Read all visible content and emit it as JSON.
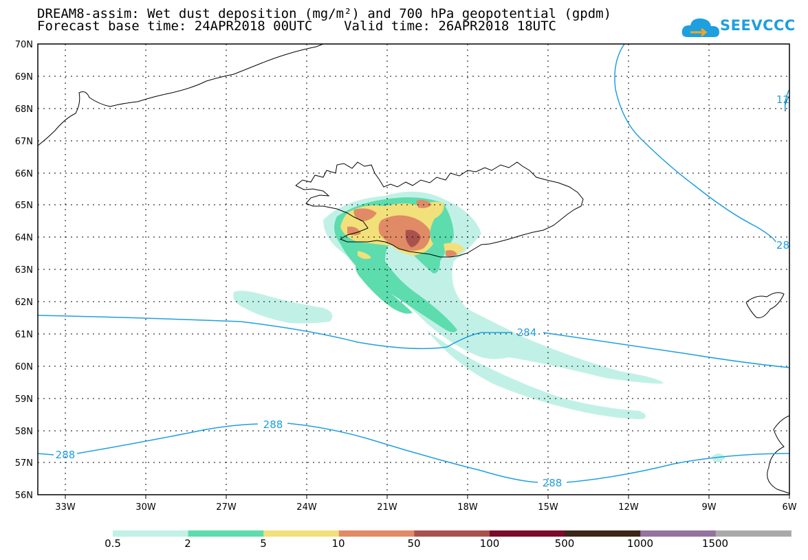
{
  "title_line1": "DREAM8-assim: Wet dust deposition (mg/m²) and 700 hPa geopotential (gpdm)",
  "title_line2": "Forecast base time: 24APR2018 00UTC    Valid time: 26APR2018 18UTC",
  "logo_text": "SEEVCCC",
  "lat_labels": [
    "70N",
    "69N",
    "68N",
    "67N",
    "66N",
    "65N",
    "64N",
    "63N",
    "62N",
    "61N",
    "60N",
    "59N",
    "58N",
    "57N",
    "56N"
  ],
  "lon_labels": [
    "33W",
    "30W",
    "27W",
    "24W",
    "21W",
    "18W",
    "15W",
    "12W",
    "9W",
    "6W"
  ],
  "contour_labels": [
    "284",
    "288",
    "288",
    "288",
    "288",
    "12",
    "28"
  ],
  "colorbar": {
    "labels": [
      "0.5",
      "2",
      "5",
      "10",
      "50",
      "100",
      "500",
      "1000",
      "1500"
    ],
    "colors": [
      "#c1f1e6",
      "#5ddcae",
      "#f2e07a",
      "#e08b66",
      "#a9524d",
      "#7c0a2a",
      "#3b2617",
      "#94739e",
      "#a9a9a9"
    ]
  },
  "geopotential_color": "#1e9fe0"
}
